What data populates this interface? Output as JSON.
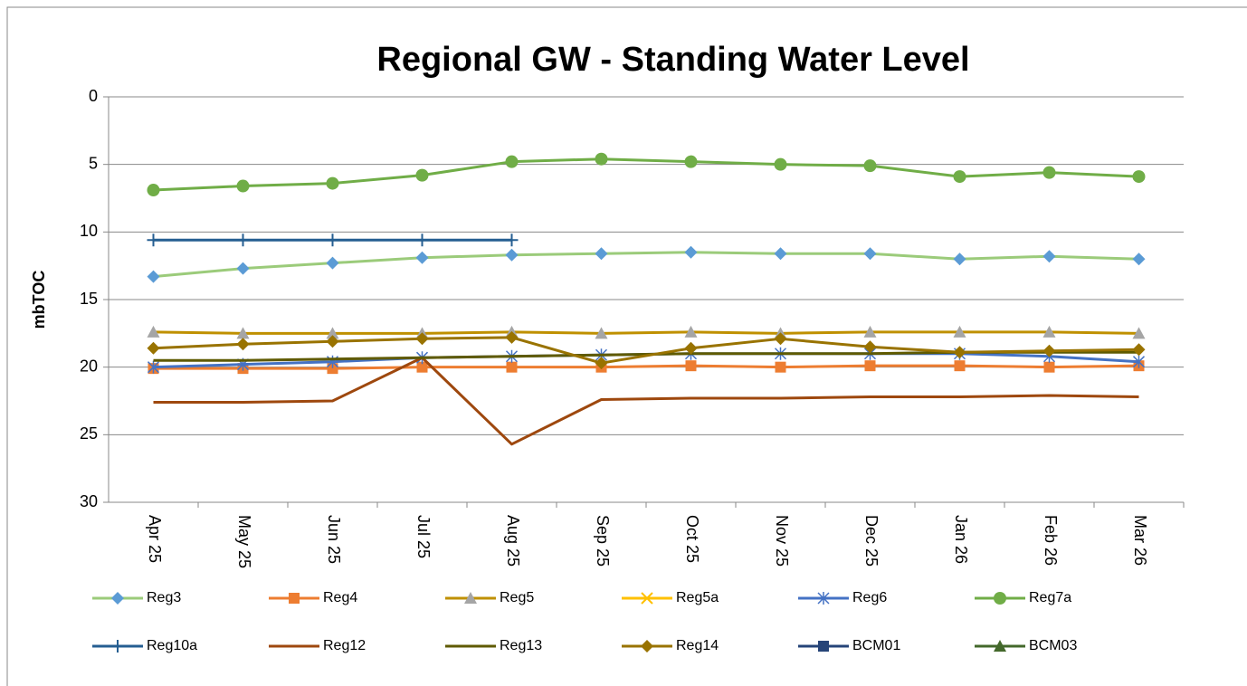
{
  "chart_data": {
    "type": "line",
    "title": "Regional GW - Standing Water Level",
    "y_label": "mbTOC",
    "categories": [
      "Apr 25",
      "May 25",
      "Jun 25",
      "Jul 25",
      "Aug 25",
      "Sep 25",
      "Oct 25",
      "Nov 25",
      "Dec 25",
      "Jan 26",
      "Feb 26",
      "Mar 26"
    ],
    "ylim": [
      0,
      30
    ],
    "yticks": [
      0,
      5,
      10,
      15,
      20,
      25,
      30
    ],
    "inverted": true,
    "grid": true,
    "legend": "bottom",
    "series": [
      {
        "name": "Reg3",
        "color": "#9BCB7A",
        "marker": "diamond",
        "marker_color": "#5B9BD5",
        "values": [
          13.3,
          12.7,
          12.3,
          11.9,
          11.7,
          11.6,
          11.5,
          11.6,
          11.6,
          12.0,
          11.8,
          12.0
        ]
      },
      {
        "name": "Reg4",
        "color": "#ED7D31",
        "marker": "square",
        "marker_color": "#ED7D31",
        "values": [
          20.1,
          20.1,
          20.1,
          20.0,
          20.0,
          20.0,
          19.9,
          20.0,
          19.9,
          19.9,
          20.0,
          19.9
        ]
      },
      {
        "name": "Reg5",
        "color": "#BF9000",
        "marker": "triangle",
        "marker_color": "#A5A5A5",
        "values": [
          17.4,
          17.5,
          17.5,
          17.5,
          17.4,
          17.5,
          17.4,
          17.5,
          17.4,
          17.4,
          17.4,
          17.5
        ]
      },
      {
        "name": "Reg5a",
        "color": "#FFC000",
        "marker": "x",
        "marker_color": "#FFC000",
        "values": [
          null,
          null,
          null,
          null,
          null,
          null,
          null,
          null,
          null,
          null,
          null,
          null
        ]
      },
      {
        "name": "Reg6",
        "color": "#4472C4",
        "marker": "star",
        "marker_color": "#4472C4",
        "values": [
          20.0,
          19.8,
          19.6,
          19.3,
          19.2,
          19.1,
          19.0,
          19.0,
          19.0,
          19.0,
          19.2,
          19.6
        ]
      },
      {
        "name": "Reg7a",
        "color": "#70AD47",
        "marker": "circle",
        "marker_color": "#70AD47",
        "values": [
          6.9,
          6.6,
          6.4,
          5.8,
          4.8,
          4.6,
          4.8,
          5.0,
          5.1,
          5.9,
          5.6,
          5.9
        ]
      },
      {
        "name": "Reg10a",
        "color": "#255E91",
        "marker": "plus",
        "marker_color": "#255E91",
        "values": [
          10.6,
          10.6,
          10.6,
          10.6,
          10.6,
          null,
          null,
          null,
          null,
          null,
          null,
          null
        ]
      },
      {
        "name": "Reg12",
        "color": "#9E480E",
        "marker": "none",
        "marker_color": "#9E480E",
        "values": [
          22.6,
          22.6,
          22.5,
          19.3,
          25.7,
          22.4,
          22.3,
          22.3,
          22.2,
          22.2,
          22.1,
          22.2
        ]
      },
      {
        "name": "Reg13",
        "color": "#5F5A00",
        "marker": "none",
        "marker_color": "#5F5A00",
        "values": [
          19.5,
          19.5,
          19.4,
          19.3,
          19.2,
          19.1,
          19.0,
          19.0,
          19.0,
          18.9,
          18.9,
          18.9
        ]
      },
      {
        "name": "Reg14",
        "color": "#997300",
        "marker": "diamond",
        "marker_color": "#997300",
        "values": [
          18.6,
          18.3,
          18.1,
          17.9,
          17.8,
          19.7,
          18.6,
          17.9,
          18.5,
          18.9,
          18.8,
          18.7
        ]
      },
      {
        "name": "BCM01",
        "color": "#264478",
        "marker": "square",
        "marker_color": "#264478",
        "values": [
          null,
          null,
          null,
          null,
          null,
          null,
          null,
          null,
          null,
          null,
          null,
          null
        ]
      },
      {
        "name": "BCM03",
        "color": "#43682B",
        "marker": "triangle",
        "marker_color": "#43682B",
        "values": [
          null,
          null,
          null,
          null,
          null,
          null,
          null,
          null,
          null,
          null,
          null,
          null
        ]
      }
    ]
  }
}
